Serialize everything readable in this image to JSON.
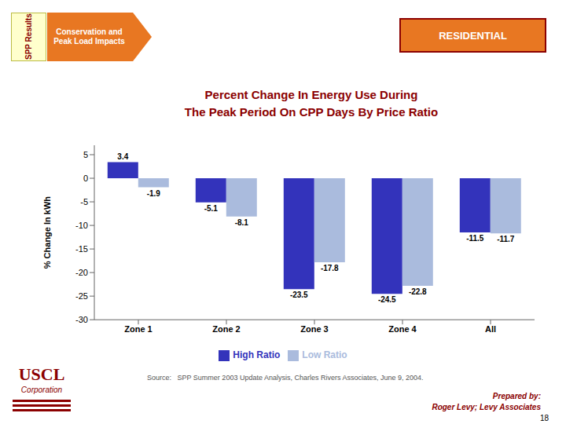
{
  "chart_data": {
    "type": "bar",
    "title": "Percent Change In Energy Use During",
    "subtitle": "The Peak Period On CPP Days By Price Ratio",
    "categories": [
      "Zone 1",
      "Zone 2",
      "Zone 3",
      "Zone 4",
      "All"
    ],
    "series": [
      {
        "name": "High Ratio",
        "color": "#3333BB",
        "values": [
          3.4,
          -5.1,
          -23.5,
          -24.5,
          -11.5
        ]
      },
      {
        "name": "Low Ratio",
        "color": "#AABBDD",
        "values": [
          -1.9,
          -8.1,
          -17.8,
          -22.8,
          -11.7
        ]
      }
    ],
    "ylabel": "% Change In kWh",
    "ylim": [
      -30,
      7
    ],
    "yticks": [
      5,
      0,
      -5,
      -10,
      -15,
      -20,
      -25,
      -30
    ],
    "grid": false,
    "legend": "bottom",
    "data_labels": true,
    "annotations": [
      "SPP Results",
      "Conservation and Peak Load Impacts",
      "RESIDENTIAL",
      "Source:   SPP Summer 2003 Update Analysis, Charles Rivers Associates, June 9, 2004.",
      "Prepared by:",
      "Roger Levy; Levy Associates",
      "18",
      "USCL",
      "Corporation"
    ]
  }
}
